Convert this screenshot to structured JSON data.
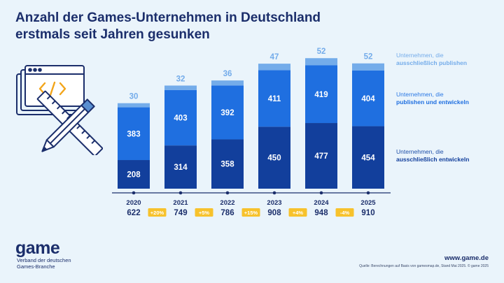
{
  "title": {
    "line1": "Anzahl der Games-Unternehmen in Deutschland",
    "line2": "erstmals seit Jahren gesunken"
  },
  "colors": {
    "background": "#eaf4fb",
    "publish_only": "#74acea",
    "publish_and_develop": "#1f6fe0",
    "develop_only": "#123f9c",
    "badge": "#f7c22c",
    "title": "#1b2e6b"
  },
  "chart_data": {
    "type": "bar",
    "stacked": true,
    "categories": [
      "2020",
      "2021",
      "2022",
      "2023",
      "2024",
      "2025"
    ],
    "series": [
      {
        "name": "Unternehmen, die ausschließlich entwickeln",
        "values": [
          208,
          314,
          358,
          450,
          477,
          454
        ]
      },
      {
        "name": "Unternehmen, die publishen und entwickeln",
        "values": [
          383,
          403,
          392,
          411,
          419,
          404
        ]
      },
      {
        "name": "Unternehmen, die ausschließlich publishen",
        "values": [
          30,
          32,
          36,
          47,
          52,
          52
        ]
      }
    ],
    "totals": [
      "622",
      "749",
      "786",
      "908",
      "948",
      "910"
    ],
    "changes": [
      "+20%",
      "+5%",
      "+15%",
      "+4%",
      "-4%"
    ],
    "legend_position": "right"
  },
  "legend": [
    {
      "line1": "Unternehmen, die",
      "line2": "ausschließlich publishen"
    },
    {
      "line1": "Unternehmen, die",
      "line2": "publishen und entwickeln"
    },
    {
      "line1": "Unternehmen, die",
      "line2": "ausschließlich entwickeln"
    }
  ],
  "footer": {
    "logo": "game",
    "org_line1": "Verband der deutschen",
    "org_line2": "Games-Branche",
    "url": "www.game.de",
    "source": "Quelle: Berechnungen auf Basis von gamesmap.de, Stand Mai 2025. © game 2025"
  },
  "icons": {
    "illustration": "browser-window-with-code-ruler-pencil-icon"
  }
}
